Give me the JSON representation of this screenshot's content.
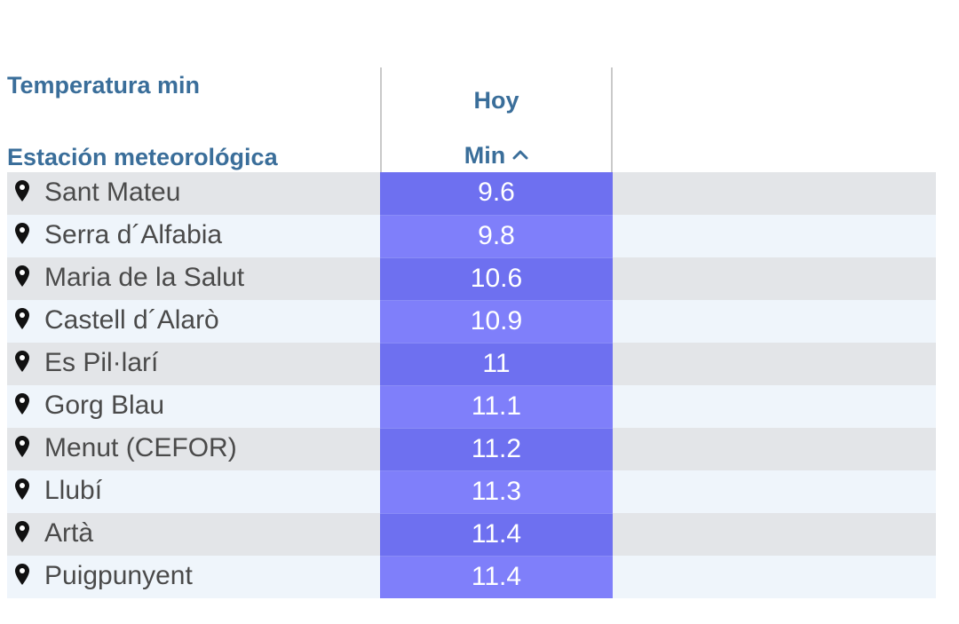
{
  "header": {
    "caption": "Temperatura min",
    "station_label": "Estación meteorológica",
    "group_label": "Hoy",
    "min_label": "Min",
    "sort_icon": "chevron-up-icon"
  },
  "rows": [
    {
      "station": "Sant Mateu",
      "min": "9.6"
    },
    {
      "station": "Serra d´Alfabia",
      "min": "9.8"
    },
    {
      "station": "Maria de la Salut",
      "min": "10.6"
    },
    {
      "station": "Castell d´Alarò",
      "min": "10.9"
    },
    {
      "station": "Es Pil·larí",
      "min": "11"
    },
    {
      "station": "Gorg Blau",
      "min": "11.1"
    },
    {
      "station": "Menut (CEFOR)",
      "min": "11.2"
    },
    {
      "station": "Llubí",
      "min": "11.3"
    },
    {
      "station": "Artà",
      "min": "11.4"
    },
    {
      "station": "Puigpunyent",
      "min": "11.4"
    }
  ],
  "colors": {
    "header_text": "#3a6e9a",
    "row_odd": "#e3e5e8",
    "row_even": "#eff5fb",
    "value_odd": "#6e70f0",
    "value_even": "#7f7ffa"
  }
}
